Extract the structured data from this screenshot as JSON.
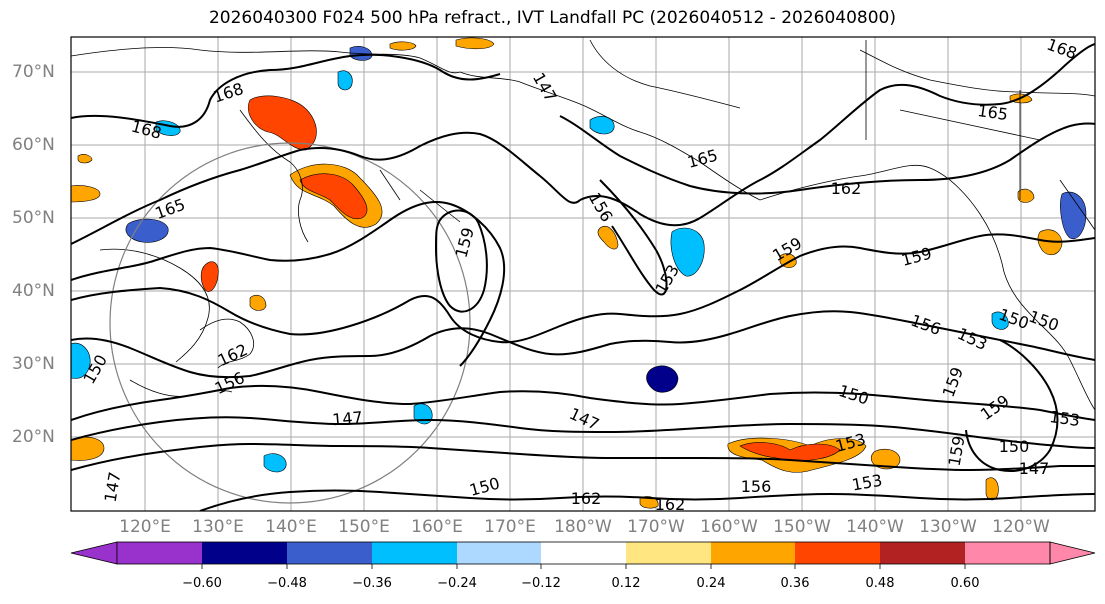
{
  "title": "2026040300 F024 500 hPa refract., IVT Landfall PC (2026040512 - 2026040800)",
  "lat_labels": [
    "70°N",
    "60°N",
    "50°N",
    "40°N",
    "30°N",
    "20°N"
  ],
  "lon_labels": [
    "120°E",
    "130°E",
    "140°E",
    "150°E",
    "160°E",
    "170°E",
    "180°W",
    "170°W",
    "160°W",
    "150°W",
    "140°W",
    "130°W",
    "120°W"
  ],
  "colorbar": {
    "ticks": [
      "−0.60",
      "−0.48",
      "−0.36",
      "−0.24",
      "−0.12",
      "0.12",
      "0.24",
      "0.36",
      "0.48",
      "0.60"
    ],
    "colors": [
      "#9932cc",
      "#00008b",
      "#3a5fcd",
      "#00bfff",
      "#add8ff",
      "#ffffff",
      "#ffe680",
      "#ffa500",
      "#ff4500",
      "#b22222",
      "#ff88aa"
    ]
  },
  "contour_labels": [
    "168",
    "168",
    "165",
    "162",
    "156",
    "150",
    "150",
    "147",
    "147",
    "159",
    "165",
    "162",
    "156",
    "153",
    "153",
    "159",
    "159",
    "150",
    "156",
    "153",
    "150",
    "147",
    "147",
    "153",
    "150",
    "156",
    "153",
    "159",
    "159",
    "159",
    "150",
    "162",
    "162",
    "165",
    "168",
    "147"
  ]
}
